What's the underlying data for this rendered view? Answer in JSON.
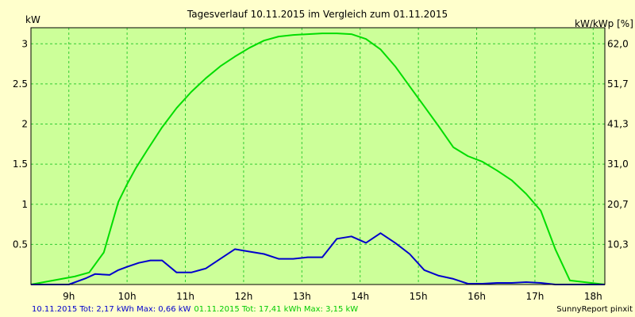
{
  "chart_data": {
    "type": "line",
    "title": "Tagesverlauf 10.11.2015 im Vergleich zum 01.11.2015",
    "left_axis_label": "kW",
    "right_axis_label": "kW/kWp [%]",
    "x_ticks": [
      "9h",
      "10h",
      "11h",
      "12h",
      "13h",
      "14h",
      "15h",
      "16h",
      "17h",
      "18h"
    ],
    "xlim": [
      8.35,
      18.2
    ],
    "ylim": [
      0,
      3.2
    ],
    "y_ticks_left": [
      "0.5",
      "1",
      "1.5",
      "2",
      "2.5",
      "3"
    ],
    "y_ticks_left_values": [
      0.5,
      1,
      1.5,
      2,
      2.5,
      3
    ],
    "y_ticks_right": [
      "10,3",
      "20,7",
      "31,0",
      "41,3",
      "51,7",
      "62,0"
    ],
    "grid": true,
    "plot_background": "#CCFF99",
    "page_background": "#FFFFCC",
    "grid_color": "#33CC33",
    "series": [
      {
        "name": "01.11.2015",
        "color": "#00DD00",
        "x": [
          8.35,
          9.1,
          9.35,
          9.6,
          9.85,
          10.0,
          10.15,
          10.35,
          10.6,
          10.85,
          11.1,
          11.35,
          11.6,
          11.85,
          12.1,
          12.35,
          12.6,
          12.85,
          13.1,
          13.35,
          13.6,
          13.85,
          14.1,
          14.35,
          14.6,
          14.85,
          15.1,
          15.35,
          15.6,
          15.85,
          16.1,
          16.35,
          16.6,
          16.85,
          17.1,
          17.35,
          17.6,
          18.2
        ],
        "values": [
          0.0,
          0.1,
          0.15,
          0.4,
          1.03,
          1.25,
          1.45,
          1.68,
          1.96,
          2.2,
          2.4,
          2.57,
          2.72,
          2.84,
          2.95,
          3.04,
          3.09,
          3.11,
          3.12,
          3.13,
          3.13,
          3.12,
          3.06,
          2.93,
          2.72,
          2.47,
          2.22,
          1.97,
          1.71,
          1.6,
          1.53,
          1.42,
          1.3,
          1.13,
          0.92,
          0.44,
          0.05,
          0.0
        ]
      },
      {
        "name": "10.11.2015",
        "color": "#0000CC",
        "x": [
          8.35,
          9.0,
          9.3,
          9.45,
          9.7,
          9.85,
          10.0,
          10.2,
          10.4,
          10.6,
          10.85,
          11.1,
          11.35,
          11.6,
          11.85,
          12.1,
          12.35,
          12.6,
          12.85,
          13.1,
          13.35,
          13.6,
          13.85,
          14.1,
          14.35,
          14.6,
          14.85,
          15.1,
          15.35,
          15.6,
          15.85,
          16.1,
          16.35,
          16.6,
          16.85,
          17.1,
          17.35,
          17.6,
          18.2
        ],
        "values": [
          0.0,
          0.0,
          0.08,
          0.13,
          0.12,
          0.18,
          0.22,
          0.27,
          0.3,
          0.3,
          0.15,
          0.15,
          0.2,
          0.32,
          0.44,
          0.41,
          0.38,
          0.32,
          0.32,
          0.34,
          0.34,
          0.57,
          0.6,
          0.52,
          0.64,
          0.52,
          0.38,
          0.18,
          0.11,
          0.07,
          0.01,
          0.01,
          0.02,
          0.02,
          0.03,
          0.02,
          0.0,
          0.0,
          0.0
        ]
      }
    ],
    "footer_left_blue": "10.11.2015 Tot: 2,17 kWh Max: 0,66 kW",
    "footer_left_green": "01.11.2015 Tot: 17,41 kWh Max: 3,15 kW",
    "footer_right": "SunnyReport pinxit"
  }
}
